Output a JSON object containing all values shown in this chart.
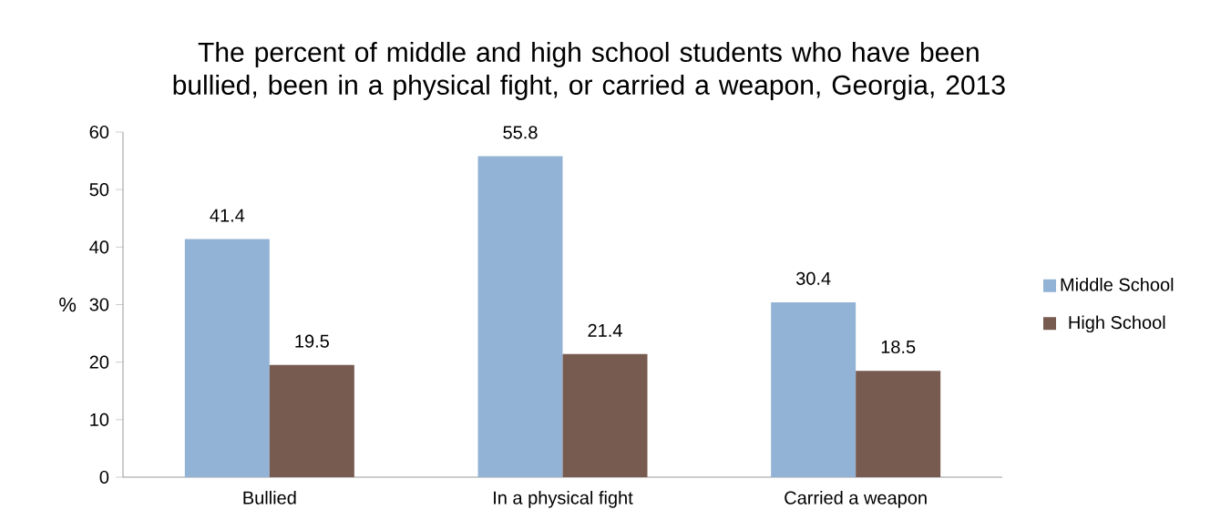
{
  "chart_data": {
    "type": "bar",
    "title": "The percent of middle and high school students who have been bullied, been in a physical fight, or carried a weapon, Georgia, 2013",
    "ylabel": "%",
    "categories": [
      "Bullied",
      "In a physical fight",
      "Carried a weapon"
    ],
    "series": [
      {
        "name": "Middle School",
        "color": "#93b3d6",
        "values": [
          41.4,
          55.8,
          30.4
        ]
      },
      {
        "name": "High School",
        "color": "#775b50",
        "values": [
          19.5,
          21.4,
          18.5
        ]
      }
    ],
    "ylim": [
      0,
      60
    ],
    "yticks": [
      0,
      10,
      20,
      30,
      40,
      50,
      60
    ],
    "data_labels": true,
    "legend": "right",
    "grid": false
  }
}
